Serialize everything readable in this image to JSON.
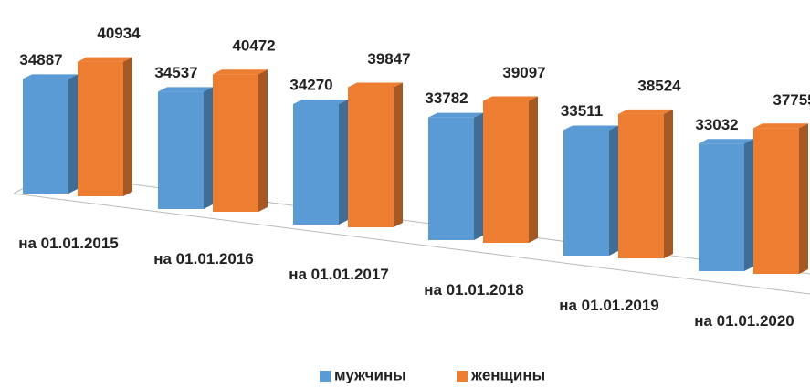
{
  "chart_data": {
    "type": "bar3d",
    "categories": [
      "на 01.01.2015",
      "на 01.01.2016",
      "на 01.01.2017",
      "на 01.01.2018",
      "на 01.01.2019",
      "на 01.01.2020"
    ],
    "series": [
      {
        "name": "мужчины",
        "color": "#5b9bd5",
        "values": [
          34887,
          34537,
          34270,
          33782,
          33511,
          33032
        ]
      },
      {
        "name": "женщины",
        "color": "#ed7d31",
        "values": [
          40934,
          40472,
          39847,
          39097,
          38524,
          37755
        ]
      }
    ],
    "legend": "bottom"
  }
}
